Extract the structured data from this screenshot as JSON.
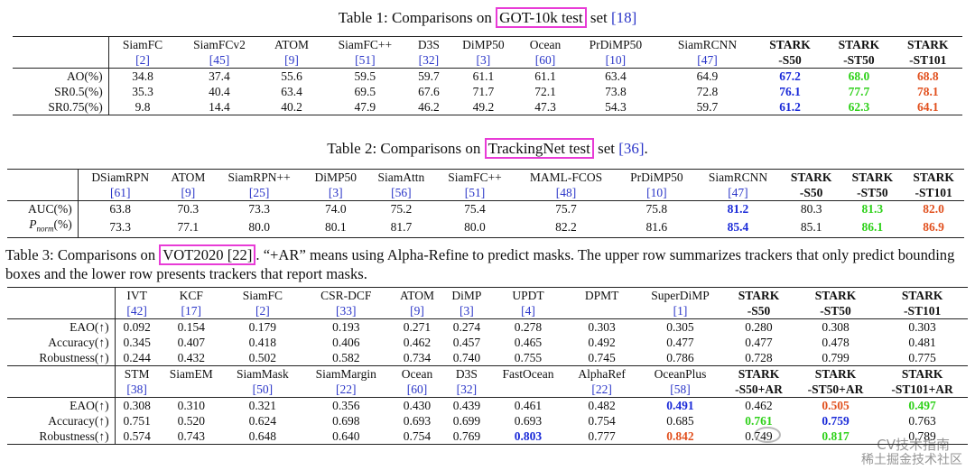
{
  "table1": {
    "caption_pre": "Table 1:  Comparisons on ",
    "caption_hl": "GOT-10k test",
    "caption_post": " set ",
    "caption_ref": "[18]",
    "columns": [
      {
        "name": "SiamFC",
        "ref": "[2]",
        "bold": false
      },
      {
        "name": "SiamFCv2",
        "ref": "[45]",
        "bold": false
      },
      {
        "name": "ATOM",
        "ref": "[9]",
        "bold": false
      },
      {
        "name": "SiamFC++",
        "ref": "[51]",
        "bold": false
      },
      {
        "name": "D3S",
        "ref": "[32]",
        "bold": false
      },
      {
        "name": "DiMP50",
        "ref": "[3]",
        "bold": false
      },
      {
        "name": "Ocean",
        "ref": "[60]",
        "bold": false
      },
      {
        "name": "PrDiMP50",
        "ref": "[10]",
        "bold": false
      },
      {
        "name": "SiamRCNN",
        "ref": "[47]",
        "bold": false
      },
      {
        "name": "STARK",
        "ref": "-S50",
        "bold": true
      },
      {
        "name": "STARK",
        "ref": "-ST50",
        "bold": true
      },
      {
        "name": "STARK",
        "ref": "-ST101",
        "bold": true
      }
    ],
    "rows": [
      {
        "label": "AO(%)",
        "values": [
          "34.8",
          "37.4",
          "55.6",
          "59.5",
          "59.7",
          "61.1",
          "61.1",
          "63.4",
          "64.9",
          "67.2",
          "68.0",
          "68.8"
        ]
      },
      {
        "label": "SR0.5(%)",
        "values": [
          "35.3",
          "40.4",
          "63.4",
          "69.5",
          "67.6",
          "71.7",
          "72.1",
          "73.8",
          "72.8",
          "76.1",
          "77.7",
          "78.1"
        ]
      },
      {
        "label": "SR0.75(%)",
        "values": [
          "9.8",
          "14.4",
          "40.2",
          "47.9",
          "46.2",
          "49.2",
          "47.3",
          "54.3",
          "59.7",
          "61.2",
          "62.3",
          "64.1"
        ]
      }
    ]
  },
  "table2": {
    "caption_pre": "Table 2:  Comparisons on ",
    "caption_hl": "TrackingNet test",
    "caption_post": " set ",
    "caption_ref": "[36]",
    "caption_end": ".",
    "columns": [
      {
        "name": "DSiamRPN",
        "ref": "[61]",
        "bold": false
      },
      {
        "name": "ATOM",
        "ref": "[9]",
        "bold": false
      },
      {
        "name": "SiamRPN++",
        "ref": "[25]",
        "bold": false
      },
      {
        "name": "DiMP50",
        "ref": "[3]",
        "bold": false
      },
      {
        "name": "SiamAttn",
        "ref": "[56]",
        "bold": false
      },
      {
        "name": "SiamFC++",
        "ref": "[51]",
        "bold": false
      },
      {
        "name": "MAML-FCOS",
        "ref": "[48]",
        "bold": false
      },
      {
        "name": "PrDiMP50",
        "ref": "[10]",
        "bold": false
      },
      {
        "name": "SiamRCNN",
        "ref": "[47]",
        "bold": false
      },
      {
        "name": "STARK",
        "ref": "-S50",
        "bold": true
      },
      {
        "name": "STARK",
        "ref": "-ST50",
        "bold": true
      },
      {
        "name": "STARK",
        "ref": "-ST101",
        "bold": true
      }
    ],
    "rows": [
      {
        "label": "AUC(%)",
        "values": [
          "63.8",
          "70.3",
          "73.3",
          "74.0",
          "75.2",
          "75.4",
          "75.7",
          "75.8",
          "81.2",
          "80.3",
          "81.3",
          "82.0"
        ]
      },
      {
        "label_main": "P",
        "label_sub": "norm",
        "label_rest": "(%)",
        "values": [
          "73.3",
          "77.1",
          "80.0",
          "80.1",
          "81.7",
          "80.0",
          "82.2",
          "81.6",
          "85.4",
          "85.1",
          "86.1",
          "86.9"
        ]
      }
    ]
  },
  "table3": {
    "caption_pre": "Table 3:  Comparisons on ",
    "caption_hl": "VOT2020 [22]",
    "caption_post": ". “+AR” means using Alpha-Refine to predict masks.  The upper row summarizes trackers that only predict bounding boxes and the lower row presents trackers that report masks.",
    "upper_columns": [
      {
        "name": "IVT",
        "ref": "[42]",
        "bold": false
      },
      {
        "name": "KCF",
        "ref": "[17]",
        "bold": false
      },
      {
        "name": "SiamFC",
        "ref": "[2]",
        "bold": false
      },
      {
        "name": "CSR-DCF",
        "ref": "[33]",
        "bold": false
      },
      {
        "name": "ATOM",
        "ref": "[9]",
        "bold": false
      },
      {
        "name": "DiMP",
        "ref": "[3]",
        "bold": false
      },
      {
        "name": "UPDT",
        "ref": "[4]",
        "bold": false
      },
      {
        "name": "DPMT",
        "ref": "",
        "bold": false
      },
      {
        "name": "SuperDiMP",
        "ref": "[1]",
        "bold": false
      },
      {
        "name": "STARK",
        "ref": "-S50",
        "bold": true
      },
      {
        "name": "STARK",
        "ref": "-ST50",
        "bold": true
      },
      {
        "name": "STARK",
        "ref": "-ST101",
        "bold": true
      }
    ],
    "upper_rows": [
      {
        "label": "EAO(↑)",
        "values": [
          "0.092",
          "0.154",
          "0.179",
          "0.193",
          "0.271",
          "0.274",
          "0.278",
          "0.303",
          "0.305",
          "0.280",
          "0.308",
          "0.303"
        ]
      },
      {
        "label": "Accuracy(↑)",
        "values": [
          "0.345",
          "0.407",
          "0.418",
          "0.406",
          "0.462",
          "0.457",
          "0.465",
          "0.492",
          "0.477",
          "0.477",
          "0.478",
          "0.481"
        ]
      },
      {
        "label": "Robustness(↑)",
        "values": [
          "0.244",
          "0.432",
          "0.502",
          "0.582",
          "0.734",
          "0.740",
          "0.755",
          "0.745",
          "0.786",
          "0.728",
          "0.799",
          "0.775"
        ]
      }
    ],
    "lower_columns": [
      {
        "name": "STM",
        "ref": "[38]",
        "bold": false
      },
      {
        "name": "SiamEM",
        "ref": "",
        "bold": false
      },
      {
        "name": "SiamMask",
        "ref": "[50]",
        "bold": false
      },
      {
        "name": "SiamMargin",
        "ref": "[22]",
        "bold": false
      },
      {
        "name": "Ocean",
        "ref": "[60]",
        "bold": false
      },
      {
        "name": "D3S",
        "ref": "[32]",
        "bold": false
      },
      {
        "name": "FastOcean",
        "ref": "",
        "bold": false
      },
      {
        "name": "AlphaRef",
        "ref": "[22]",
        "bold": false
      },
      {
        "name": "OceanPlus",
        "ref": "[58]",
        "bold": false
      },
      {
        "name": "STARK",
        "ref": "-S50+AR",
        "bold": true
      },
      {
        "name": "STARK",
        "ref": "-ST50+AR",
        "bold": true
      },
      {
        "name": "STARK",
        "ref": "-ST101+AR",
        "bold": true
      }
    ],
    "lower_rows": [
      {
        "label": "EAO(↑)",
        "values": [
          "0.308",
          "0.310",
          "0.321",
          "0.356",
          "0.430",
          "0.439",
          "0.461",
          "0.482",
          "0.491",
          "0.462",
          "0.505",
          "0.497"
        ]
      },
      {
        "label": "Accuracy(↑)",
        "values": [
          "0.751",
          "0.520",
          "0.624",
          "0.698",
          "0.693",
          "0.699",
          "0.693",
          "0.754",
          "0.685",
          "0.761",
          "0.759",
          "0.763"
        ]
      },
      {
        "label": "Robustness(↑)",
        "values": [
          "0.574",
          "0.743",
          "0.648",
          "0.640",
          "0.754",
          "0.769",
          "0.803",
          "0.777",
          "0.842",
          "0.749",
          "0.817",
          "0.789"
        ]
      }
    ]
  },
  "highlight": {
    "table1": {
      "0": {
        "9": "blue",
        "10": "green",
        "11": "red"
      },
      "1": {
        "9": "blue",
        "10": "green",
        "11": "red"
      },
      "2": {
        "9": "blue",
        "10": "green",
        "11": "red"
      }
    },
    "table2": {
      "0": {
        "8": "blue",
        "10": "green",
        "11": "red"
      },
      "1": {
        "8": "blue",
        "10": "green",
        "11": "red"
      }
    },
    "table3_lower": {
      "0": {
        "8": "blue",
        "10": "red",
        "11": "green"
      },
      "1": {
        "9": "green",
        "10": "blue"
      },
      "2": {
        "6": "blue",
        "8": "red",
        "10": "green"
      }
    }
  },
  "colors": {
    "blue": "#1a2ad8",
    "green": "#2fd11a",
    "red": "#e1501e",
    "highlight_box": "#e83bd6",
    "ref_link": "#2a35c8"
  },
  "watermark": {
    "line1": "CV技术指南",
    "line2": "稀土掘金技术社区"
  }
}
